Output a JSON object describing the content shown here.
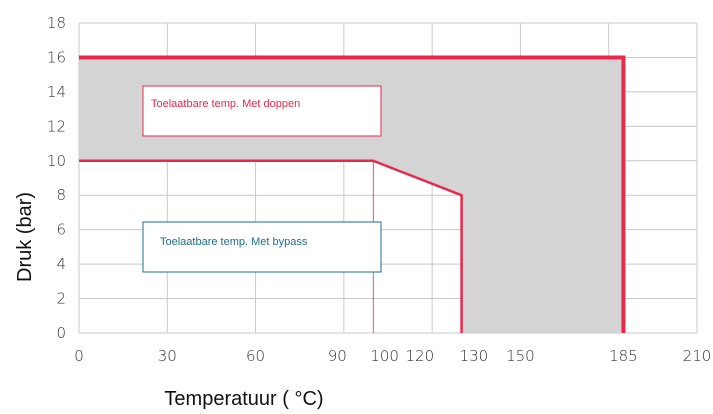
{
  "chart_data": {
    "type": "area",
    "xlabel": "Temperatuur ( °C)",
    "ylabel": "Druk (bar)",
    "xlim": [
      0,
      210
    ],
    "ylim": [
      0,
      18
    ],
    "x_ticks": [
      0,
      30,
      60,
      90,
      100,
      120,
      130,
      150,
      185,
      210
    ],
    "x_tick_labels": [
      "0",
      "30",
      "60",
      "90",
      "100",
      "120",
      "130",
      "150",
      "185",
      "210"
    ],
    "highlight_tick": 185,
    "y_ticks": [
      0,
      2,
      4,
      6,
      8,
      10,
      12,
      14,
      16,
      18
    ],
    "y_tick_labels": [
      "0",
      "2",
      "4",
      "6",
      "8",
      "10",
      "12",
      "14",
      "16",
      "18"
    ],
    "grid": true,
    "series": [
      {
        "name": "Toelaatbare temp. Met doppen",
        "color": "#e8294a",
        "x": [
          0,
          185,
          185
        ],
        "y": [
          16,
          16,
          0
        ]
      },
      {
        "name": "Toelaatbare temp. Met bypass",
        "color": "#e8294a",
        "x": [
          0,
          100,
          130,
          130
        ],
        "y": [
          10,
          10,
          8,
          0
        ]
      }
    ],
    "shaded_region": {
      "color": "#d4d4d4",
      "x": [
        0,
        185,
        185,
        130,
        130,
        100,
        0
      ],
      "y": [
        16,
        16,
        0,
        0,
        8,
        10,
        10
      ]
    },
    "reference_line": {
      "x": 100,
      "y_range": [
        0,
        10
      ],
      "color": "#e8294a"
    },
    "annotations": [
      {
        "text": "Toelaatbare temp. Met doppen",
        "border_color": "#e8294a",
        "text_color": "#e8294a"
      },
      {
        "text": "Toelaatbare temp. Met bypass",
        "border_color": "#1f6e8c",
        "text_color": "#1f6e8c"
      }
    ]
  }
}
